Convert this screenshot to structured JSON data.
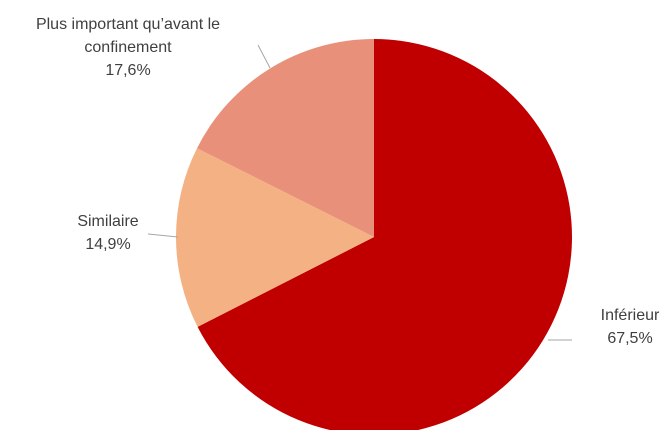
{
  "chart_data": {
    "type": "pie",
    "title": "",
    "start_angle_deg": 0,
    "direction": "clockwise",
    "slices": [
      {
        "label": "Inférieur",
        "value": 67.5,
        "value_label": "67,5%",
        "color": "#C00000"
      },
      {
        "label": "Similaire",
        "value": 14.9,
        "value_label": "14,9%",
        "color": "#F4B183"
      },
      {
        "label_lines": [
          "Plus important qu’avant le",
          "confinement"
        ],
        "value": 17.6,
        "value_label": "17,6%",
        "color": "#E8907A"
      }
    ]
  }
}
